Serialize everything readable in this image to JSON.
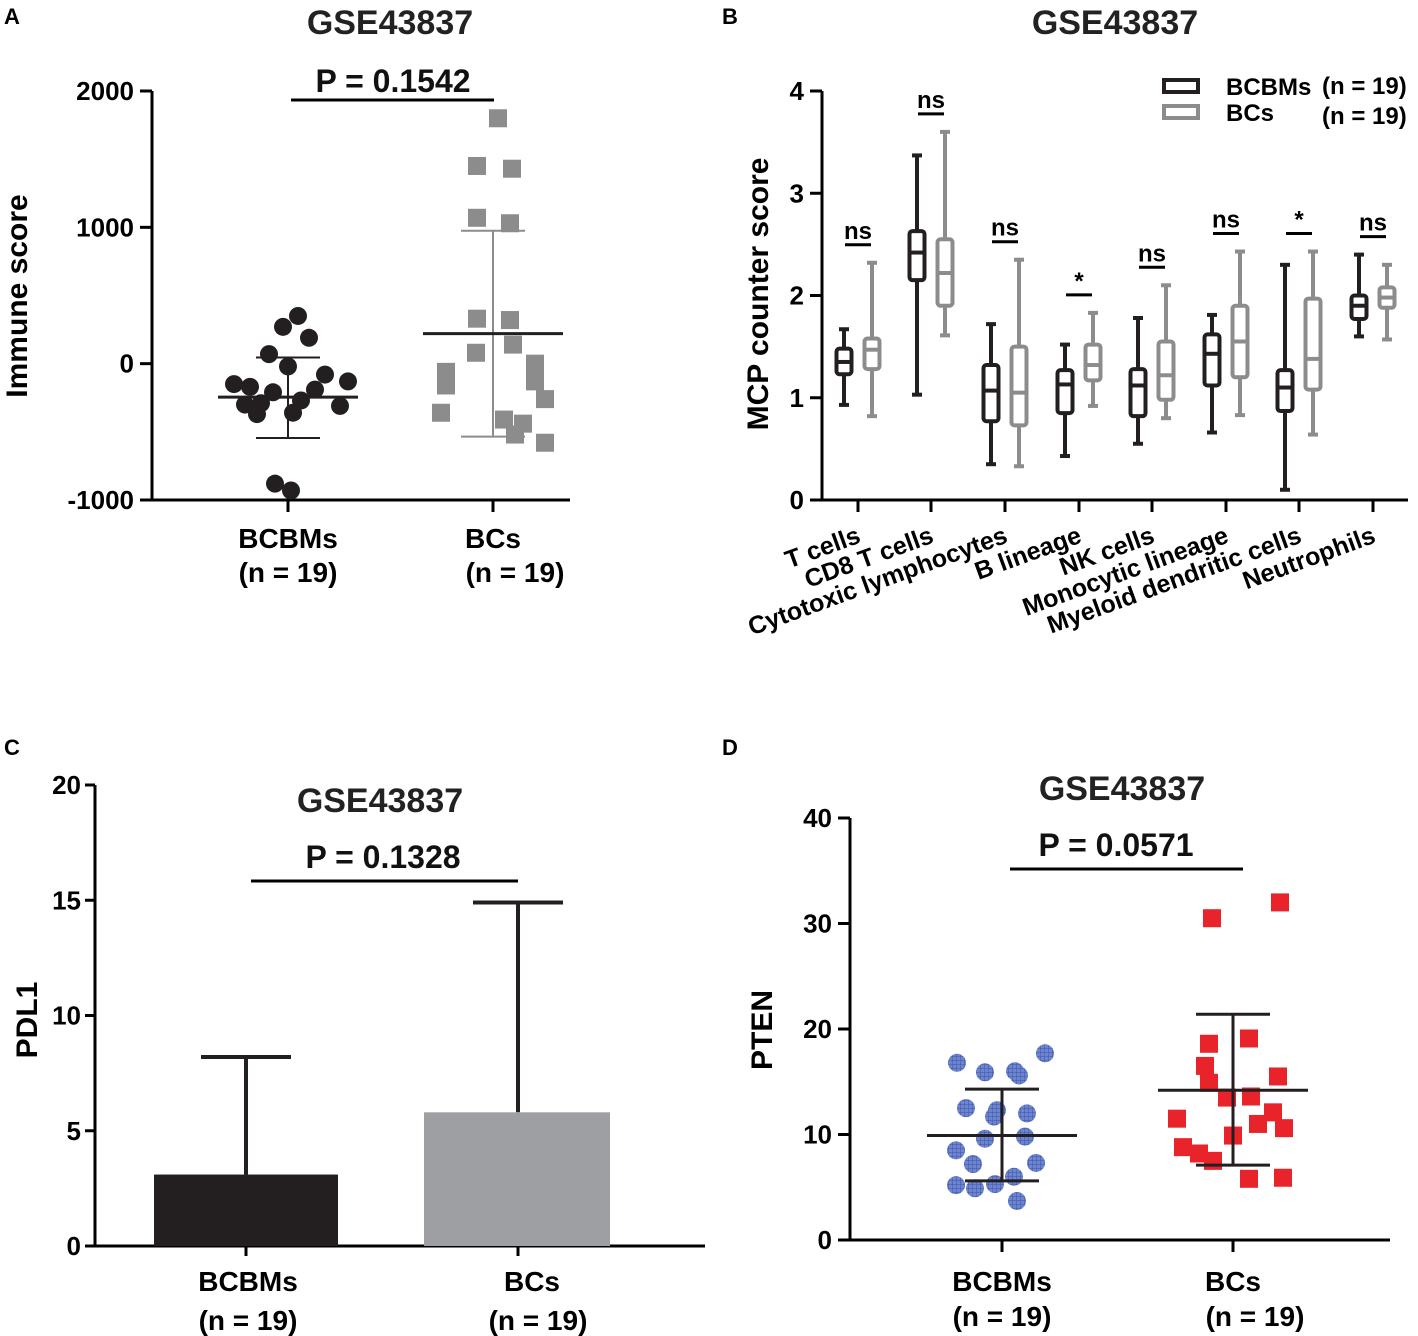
{
  "chart_data": [
    {
      "panel": "A",
      "type": "scatter",
      "title": "GSE43837",
      "annotation": "P = 0.1542",
      "ylabel": "Immune score",
      "ylim": [
        -1000,
        2000
      ],
      "yticks": [
        2000,
        1000,
        0,
        -1000
      ],
      "yticklabels": [
        "2000",
        "1000",
        "0",
        "-1000"
      ],
      "categories": [
        {
          "name": "BCBMs",
          "n": "(n = 19)",
          "color": "#231f20",
          "marker": "circle",
          "mean": -245,
          "sd_upper": 45,
          "sd_lower": -545,
          "values": [
            350,
            270,
            190,
            70,
            -20,
            -80,
            -130,
            -150,
            -170,
            -190,
            -210,
            -270,
            -290,
            -300,
            -310,
            -360,
            -370,
            -880,
            -930
          ]
        },
        {
          "name": "BCs",
          "n": "(n = 19)",
          "color": "#8c8c8c",
          "marker": "square",
          "mean": 220,
          "sd_upper": 975,
          "sd_lower": -535,
          "values": [
            1800,
            1450,
            1430,
            1070,
            1030,
            330,
            320,
            140,
            80,
            0,
            -60,
            -130,
            -160,
            -260,
            -360,
            -410,
            -440,
            -520,
            -580
          ]
        }
      ]
    },
    {
      "panel": "B",
      "type": "box",
      "title": "GSE43837",
      "ylabel": "MCP counter score",
      "ylim": [
        0,
        4
      ],
      "yticks": [
        4,
        3,
        2,
        1,
        0
      ],
      "yticklabels": [
        "4",
        "3",
        "2",
        "1",
        "0"
      ],
      "legend": [
        {
          "label": "BCBMs",
          "n": "(n = 19)",
          "color": "#231f20"
        },
        {
          "label": "BCs",
          "n": "(n = 19)",
          "color": "#8c8c8c"
        }
      ],
      "groups": [
        {
          "name": "T cells",
          "sig": "ns",
          "BCBMs": [
            0.93,
            1.23,
            1.35,
            1.48,
            1.67
          ],
          "BCs": [
            0.82,
            1.28,
            1.47,
            1.58,
            2.32
          ]
        },
        {
          "name": "CD8 T cells",
          "sig": "ns",
          "BCBMs": [
            1.03,
            2.15,
            2.42,
            2.63,
            3.37
          ],
          "BCs": [
            1.61,
            1.9,
            2.22,
            2.55,
            3.6
          ]
        },
        {
          "name": "Cytotoxic lymphocytes",
          "sig": "ns",
          "BCBMs": [
            0.35,
            0.77,
            1.07,
            1.32,
            1.72
          ],
          "BCs": [
            0.33,
            0.73,
            1.05,
            1.5,
            2.35
          ]
        },
        {
          "name": "B lineage",
          "sig": "*",
          "BCBMs": [
            0.43,
            0.85,
            1.13,
            1.27,
            1.52
          ],
          "BCs": [
            0.92,
            1.17,
            1.32,
            1.52,
            1.83
          ]
        },
        {
          "name": "NK cells",
          "sig": "ns",
          "BCBMs": [
            0.55,
            0.82,
            1.12,
            1.28,
            1.78
          ],
          "BCs": [
            0.8,
            0.98,
            1.22,
            1.55,
            2.1
          ]
        },
        {
          "name": "Monocytic lineage",
          "sig": "ns",
          "BCBMs": [
            0.66,
            1.12,
            1.43,
            1.62,
            1.81
          ],
          "BCs": [
            0.83,
            1.2,
            1.55,
            1.9,
            2.43
          ]
        },
        {
          "name": "Myeloid dendritic cells",
          "sig": "*",
          "BCBMs": [
            0.1,
            0.87,
            1.1,
            1.27,
            2.3
          ],
          "BCs": [
            0.64,
            1.08,
            1.38,
            1.97,
            2.43
          ]
        },
        {
          "name": "Neutrophils",
          "sig": "ns",
          "BCBMs": [
            1.6,
            1.77,
            1.9,
            2.0,
            2.4
          ],
          "BCs": [
            1.57,
            1.88,
            1.98,
            2.08,
            2.3
          ]
        }
      ]
    },
    {
      "panel": "C",
      "type": "bar",
      "title": "GSE43837",
      "annotation": "P = 0.1328",
      "ylabel": "PDL1",
      "ylim": [
        0,
        20
      ],
      "yticks": [
        20,
        15,
        10,
        5,
        0
      ],
      "yticklabels": [
        "20",
        "15",
        "10",
        "5",
        "0"
      ],
      "categories": [
        {
          "name": "BCBMs",
          "n": "(n = 19)",
          "value": 3.1,
          "error_upper": 8.2,
          "color": "#231f20"
        },
        {
          "name": "BCs",
          "n": "(n = 19)",
          "value": 5.8,
          "error_upper": 14.9,
          "color": "#9d9fa2"
        }
      ]
    },
    {
      "panel": "D",
      "type": "scatter",
      "title": "GSE43837",
      "annotation": "P = 0.0571",
      "ylabel": "PTEN",
      "ylim": [
        0,
        40
      ],
      "yticks": [
        40,
        30,
        20,
        10,
        0
      ],
      "yticklabels": [
        "40",
        "30",
        "20",
        "10",
        "0"
      ],
      "categories": [
        {
          "name": "BCBMs",
          "n": "(n = 19)",
          "color": "#5b73c4",
          "marker": "circle",
          "mean": 9.9,
          "sd_upper": 14.3,
          "sd_lower": 5.6,
          "values": [
            17.7,
            16.8,
            16.0,
            15.9,
            15.6,
            12.5,
            12.3,
            12.0,
            11.7,
            9.8,
            9.6,
            8.5,
            7.3,
            7.2,
            6.0,
            5.3,
            5.2,
            4.9,
            3.7
          ]
        },
        {
          "name": "BCs",
          "n": "(n = 19)",
          "color": "#e8232a",
          "marker": "square",
          "mean": 14.2,
          "sd_upper": 21.4,
          "sd_lower": 7.1,
          "values": [
            32.0,
            30.5,
            19.1,
            18.6,
            16.5,
            15.5,
            14.9,
            13.6,
            13.5,
            12.1,
            11.5,
            11.0,
            10.6,
            8.8,
            8.2,
            7.5,
            5.9,
            5.8,
            9.9
          ]
        }
      ]
    }
  ],
  "panel_letters": [
    "A",
    "B",
    "C",
    "D"
  ]
}
